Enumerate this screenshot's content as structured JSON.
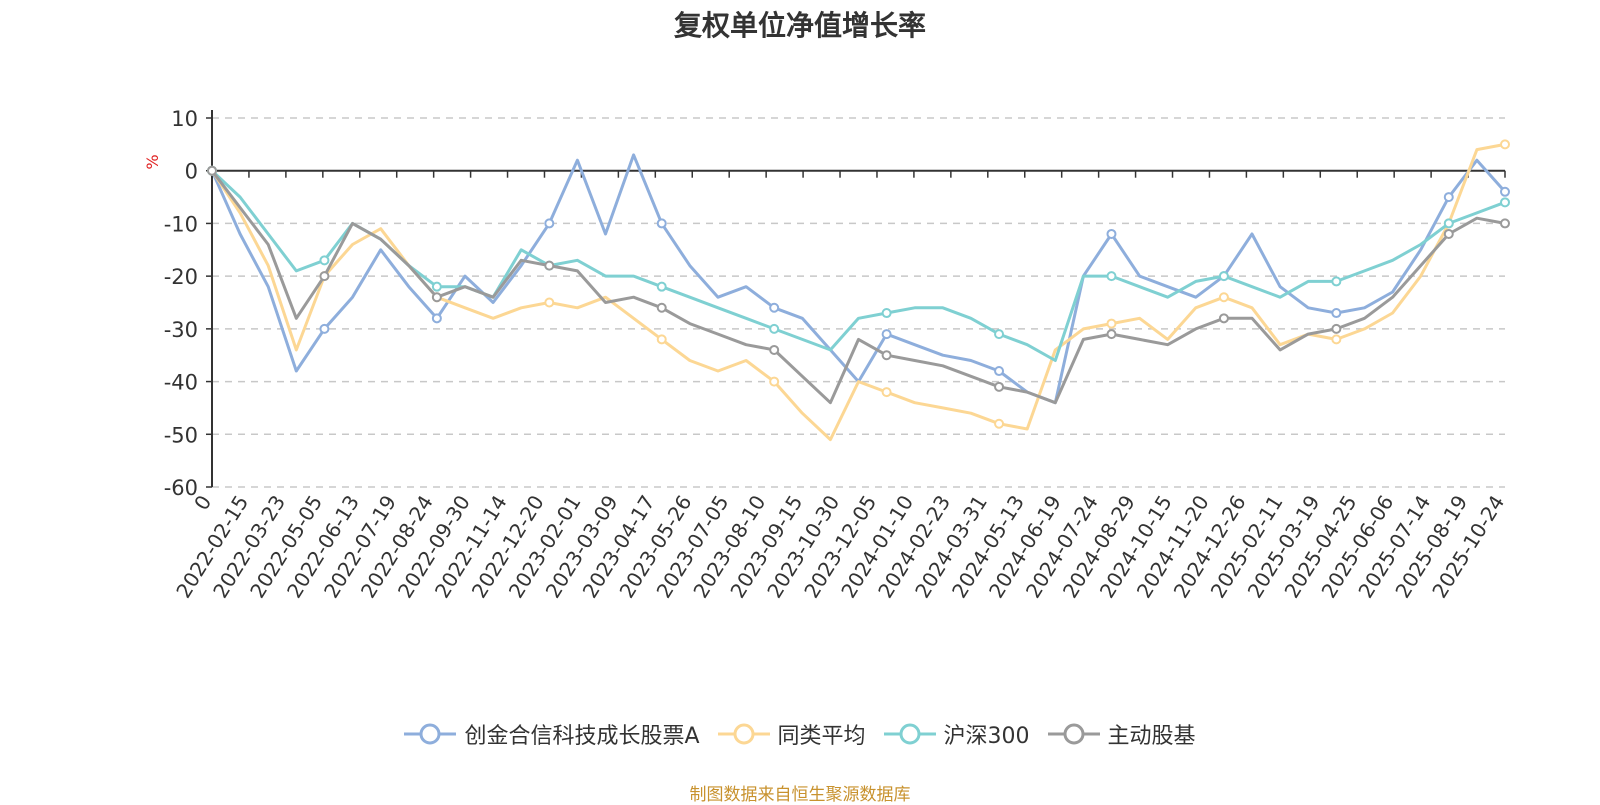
{
  "chart_data": {
    "type": "line",
    "title": "复权单位净值增长率",
    "ylabel": "%",
    "xlabel": "",
    "ylim": [
      -60,
      10
    ],
    "yticks": [
      10,
      0,
      -10,
      -20,
      -30,
      -40,
      -50,
      -60
    ],
    "x_tick_labels": [
      "0",
      "2022-02-15",
      "2022-03-23",
      "2022-05-05",
      "2022-06-13",
      "2022-07-19",
      "2022-08-24",
      "2022-09-30",
      "2022-11-14",
      "2022-12-20",
      "2023-02-01",
      "2023-03-09",
      "2023-04-17",
      "2023-05-26",
      "2023-07-05",
      "2023-08-10",
      "2023-09-15",
      "2023-10-30",
      "2023-12-05",
      "2024-01-10",
      "2024-02-23",
      "2024-03-31",
      "2024-05-13",
      "2024-06-19",
      "2024-07-24",
      "2024-08-29",
      "2024-10-15",
      "2024-11-20",
      "2024-12-26",
      "2025-02-11",
      "2025-03-19",
      "2025-04-25",
      "2025-06-06",
      "2025-07-14",
      "2025-08-19",
      "2025-10-24"
    ],
    "grid": true,
    "legend_position": "bottom",
    "series": [
      {
        "name": "创金合信科技成长股票A",
        "color": "#8eaedc",
        "values": [
          0,
          -12,
          -22,
          -38,
          -30,
          -24,
          -15,
          -22,
          -28,
          -20,
          -25,
          -18,
          -10,
          2,
          -12,
          3,
          -10,
          -18,
          -24,
          -22,
          -26,
          -28,
          -34,
          -40,
          -31,
          -33,
          -35,
          -36,
          -38,
          -42,
          -44,
          -20,
          -12,
          -20,
          -22,
          -24,
          -20,
          -12,
          -22,
          -26,
          -27,
          -26,
          -23,
          -15,
          -5,
          2,
          -4
        ]
      },
      {
        "name": "同类平均",
        "color": "#fcd794",
        "values": [
          0,
          -8,
          -18,
          -34,
          -20,
          -14,
          -11,
          -18,
          -24,
          -26,
          -28,
          -26,
          -25,
          -26,
          -24,
          -28,
          -32,
          -36,
          -38,
          -36,
          -40,
          -46,
          -51,
          -40,
          -42,
          -44,
          -45,
          -46,
          -48,
          -49,
          -34,
          -30,
          -29,
          -28,
          -32,
          -26,
          -24,
          -26,
          -33,
          -31,
          -32,
          -30,
          -27,
          -20,
          -10,
          4,
          5
        ]
      },
      {
        "name": "沪深300",
        "color": "#7fd0d2",
        "values": [
          0,
          -5,
          -12,
          -19,
          -17,
          -10,
          -13,
          -18,
          -22,
          -22,
          -24,
          -15,
          -18,
          -17,
          -20,
          -20,
          -22,
          -24,
          -26,
          -28,
          -30,
          -32,
          -34,
          -28,
          -27,
          -26,
          -26,
          -28,
          -31,
          -33,
          -36,
          -20,
          -20,
          -22,
          -24,
          -21,
          -20,
          -22,
          -24,
          -21,
          -21,
          -19,
          -17,
          -14,
          -10,
          -8,
          -6
        ]
      },
      {
        "name": "主动股基",
        "color": "#9a9a9a",
        "values": [
          0,
          -7,
          -14,
          -28,
          -20,
          -10,
          -13,
          -18,
          -24,
          -22,
          -24,
          -17,
          -18,
          -19,
          -25,
          -24,
          -26,
          -29,
          -31,
          -33,
          -34,
          -39,
          -44,
          -32,
          -35,
          -36,
          -37,
          -39,
          -41,
          -42,
          -44,
          -32,
          -31,
          -32,
          -33,
          -30,
          -28,
          -28,
          -34,
          -31,
          -30,
          -28,
          -24,
          -18,
          -12,
          -9,
          -10
        ]
      }
    ]
  },
  "source_note": "制图数据来自恒生聚源数据库"
}
